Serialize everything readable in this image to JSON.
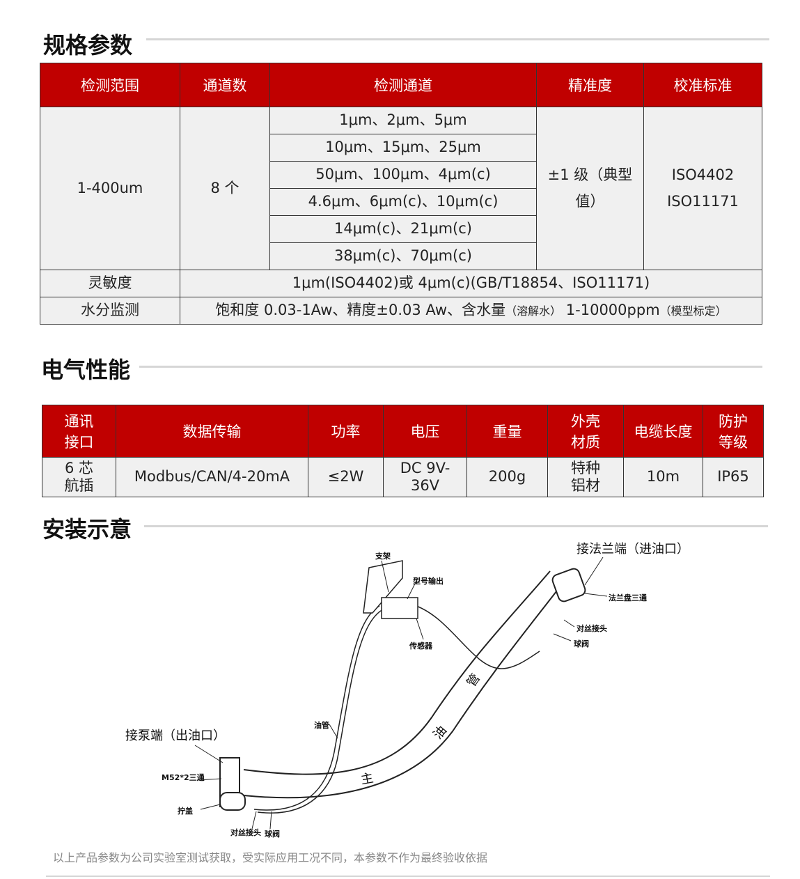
{
  "sections": {
    "spec": "规格参数",
    "electrical": "电气性能",
    "install": "安装示意"
  },
  "spec_table": {
    "headers": [
      "检测范围",
      "通道数",
      "检测通道",
      "精准度",
      "校准标准"
    ],
    "range": "1-400um",
    "channels": "8 个",
    "channel_rows": [
      "1μm、2μm、5μm",
      "10μm、15μm、25μm",
      "50μm、100μm、4μm(c)",
      "4.6μm、6μm(c)、10μm(c)",
      "14μm(c)、21μm(c)",
      "38μm(c)、70μm(c)"
    ],
    "accuracy": "±1 级（典型值）",
    "calibration": [
      "ISO4402",
      "ISO11171"
    ],
    "sensitivity_label": "灵敏度",
    "sensitivity": "1μm(ISO4402)或 4μm(c)(GB/T18854、ISO11171)",
    "moisture_label": "水分监测",
    "moisture_a": "饱和度 0.03-1Aw、精度±0.03 Aw、含水量",
    "moisture_b": "（溶解水）",
    "moisture_c": " 1-10000ppm",
    "moisture_d": "（模型标定）"
  },
  "elec_table": {
    "headers": [
      "通讯接口",
      "数据传输",
      "功率",
      "电压",
      "重量",
      "外壳材质",
      "电缆长度",
      "防护等级"
    ],
    "values": [
      "6 芯航插",
      "Modbus/CAN/4-20mA",
      "≤2W",
      "DC 9V-36V",
      "200g",
      "特种铝材",
      "10m",
      "IP65"
    ]
  },
  "diagram": {
    "labels": {
      "bracket": "支架",
      "model_out": "型号输出",
      "sensor": "传感器",
      "flange_end": "接法兰端（进油口）",
      "flange_tee": "法兰盘三通",
      "coupling1": "对丝接头",
      "valve1": "球阀",
      "pump_end": "接泵端（出油口）",
      "oil_pipe": "油管",
      "tee": "M52*2三通",
      "cap": "拧盖",
      "coupling2": "对丝接头",
      "valve2": "球阀",
      "main1": "主",
      "main2": "油",
      "main3": "管"
    }
  },
  "footer": "以上产品参数为公司实验室测试获取，受实际应用工况不同，本参数不作为最终验收依据",
  "colors": {
    "header_red": "#c00000",
    "cell_gray": "#f0f0f0"
  }
}
